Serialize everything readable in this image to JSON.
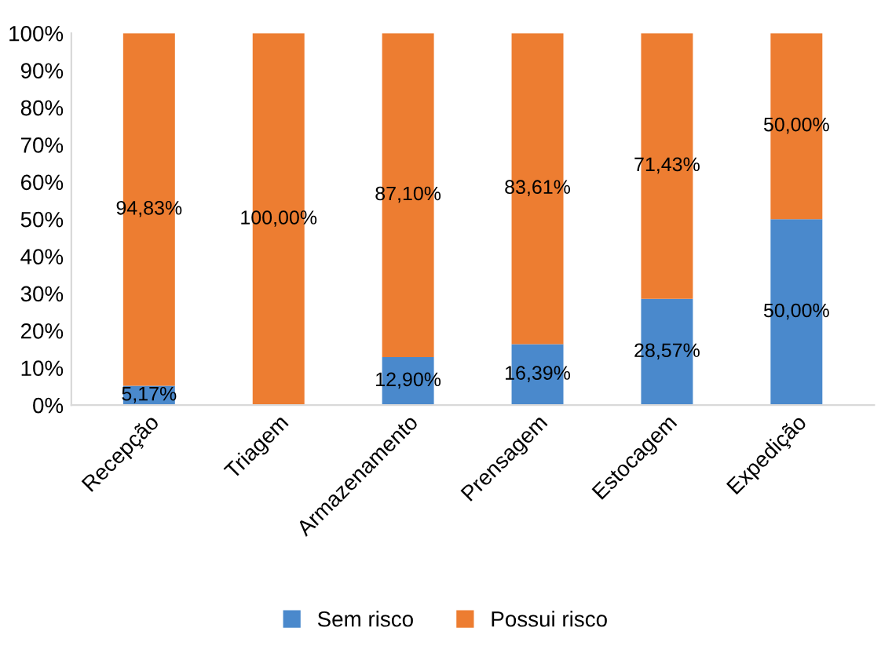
{
  "chart_data": {
    "type": "bar",
    "stacked": true,
    "categories": [
      "Recepção",
      "Triagem",
      "Armazenamento",
      "Prensagem",
      "Estocagem",
      "Expedição"
    ],
    "series": [
      {
        "name": "Sem risco",
        "color": "#4a89cc",
        "values": [
          5.17,
          0,
          12.9,
          16.39,
          28.57,
          50
        ],
        "value_labels": [
          "5,17%",
          null,
          "12,90%",
          "16,39%",
          "28,57%",
          "50,00%"
        ]
      },
      {
        "name": "Possui risco",
        "color": "#ed7d31",
        "values": [
          94.83,
          100,
          87.1,
          83.61,
          71.43,
          50
        ],
        "value_labels": [
          "94,83%",
          "100,00%",
          "87,10%",
          "83,61%",
          "71,43%",
          "50,00%"
        ]
      }
    ],
    "ylim": [
      0,
      100
    ],
    "yticks": [
      {
        "value": 0,
        "label": "0%"
      },
      {
        "value": 10,
        "label": "10%"
      },
      {
        "value": 20,
        "label": "20%"
      },
      {
        "value": 30,
        "label": "30%"
      },
      {
        "value": 40,
        "label": "40%"
      },
      {
        "value": 50,
        "label": "50%"
      },
      {
        "value": 60,
        "label": "60%"
      },
      {
        "value": 70,
        "label": "70%"
      },
      {
        "value": 80,
        "label": "80%"
      },
      {
        "value": 90,
        "label": "90%"
      },
      {
        "value": 100,
        "label": "100%"
      }
    ],
    "grid": false,
    "legend": "bottom"
  }
}
